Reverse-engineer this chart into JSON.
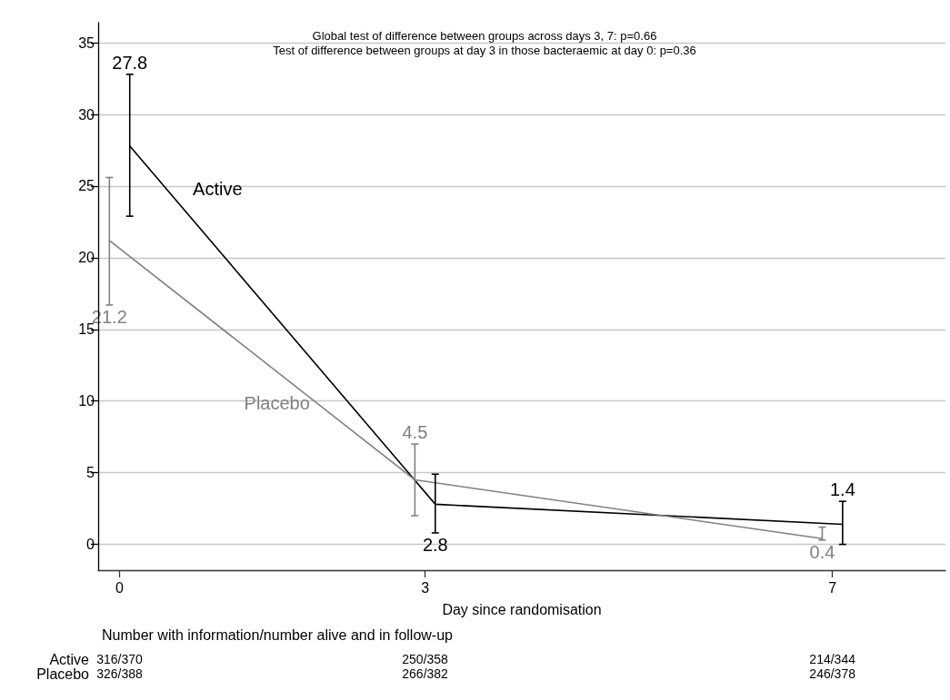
{
  "chart_data": {
    "type": "line",
    "xlabel": "Day since randomisation",
    "annotations": [
      "Global test of difference between groups across days 3, 7: p=0.66",
      "Test of difference between groups at day 3 in those bacteraemic at day 0: p=0.36",
      "Number with information/number alive and in follow-up",
      "Active",
      "316/370",
      "250/358",
      "214/344",
      "Placebo",
      "326/388",
      "266/382",
      "246/378",
      {
        "text": "27.8",
        "x": 0.1,
        "y": 32.8
      },
      {
        "text": "21.2",
        "x": -0.1,
        "y": 16.7
      }
    ],
    "xlim": [
      -0.21,
      8.11
    ],
    "xticks": [
      0,
      3,
      7
    ],
    "ylim": [
      -1.8,
      36.4
    ],
    "yticks": [
      0,
      5,
      10,
      15,
      20,
      25,
      30,
      35
    ],
    "grid": "y",
    "legend": false,
    "marker": "none",
    "line_style": "solid",
    "series": [
      {
        "name": "Active",
        "color": "#000000",
        "x": [
          0.1,
          3.1,
          7.1
        ],
        "values": [
          27.8,
          2.8,
          1.4
        ],
        "value_labels": [
          null,
          "2.8",
          "1.4"
        ],
        "errors": [
          [
            22.9,
            32.8
          ],
          [
            0.8,
            4.9
          ],
          [
            0,
            3.0
          ]
        ]
      },
      {
        "name": "Placebo",
        "color": "#808080",
        "x": [
          -0.1,
          2.9,
          6.9
        ],
        "values": [
          21.2,
          4.5,
          0.4
        ],
        "value_labels": [
          null,
          "4.5",
          "0.4"
        ],
        "errors": [
          [
            16.7,
            25.6
          ],
          [
            2.0,
            7.0
          ],
          [
            0.3,
            1.2
          ]
        ]
      }
    ]
  }
}
